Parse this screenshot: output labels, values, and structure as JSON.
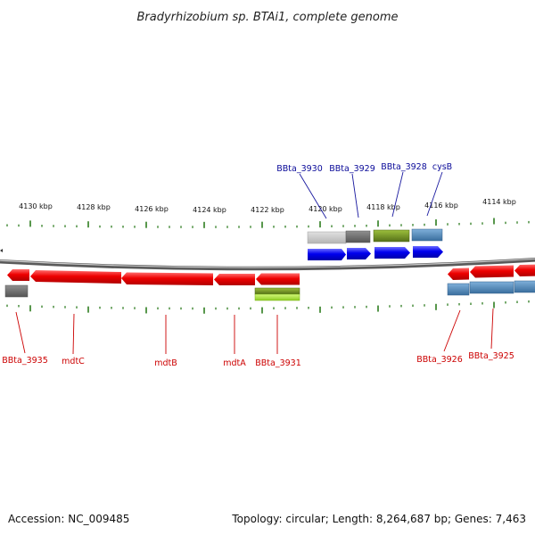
{
  "title": "Bradyrhizobium sp. BTAi1, complete genome",
  "footer": {
    "accession": "Accession: NC_009485",
    "summary": "Topology: circular; Length: 8,264,687 bp; Genes: 7,463"
  },
  "scale": {
    "labels": [
      "4130 kbp",
      "4128 kbp",
      "4126 kbp",
      "4124 kbp",
      "4122 kbp",
      "4120 kbp",
      "4118 kbp",
      "4116 kbp",
      "4114 kbp"
    ]
  },
  "top_labels": [
    "BBta_3930",
    "BBta_3929",
    "BBta_3928",
    "cysB"
  ],
  "bottom_labels": [
    "BBta_3935",
    "mdtC",
    "mdtB",
    "mdtA",
    "BBta_3931",
    "BBta_3926",
    "BBta_3925"
  ],
  "colors": {
    "forward_gene": "#0000ee",
    "reverse_gene": "#ee0000",
    "backbone": "#808080",
    "ticks": "#2e7d1f",
    "leader_top": "#1a1aa0",
    "leader_bottom": "#cc0000",
    "feature_light_gray": "#c4c4c4",
    "feature_dark_gray": "#6a6a6a",
    "feature_olive": "#6f8e23",
    "feature_steel_blue": "#4d86b8",
    "feature_lime": "#a6e03a"
  }
}
